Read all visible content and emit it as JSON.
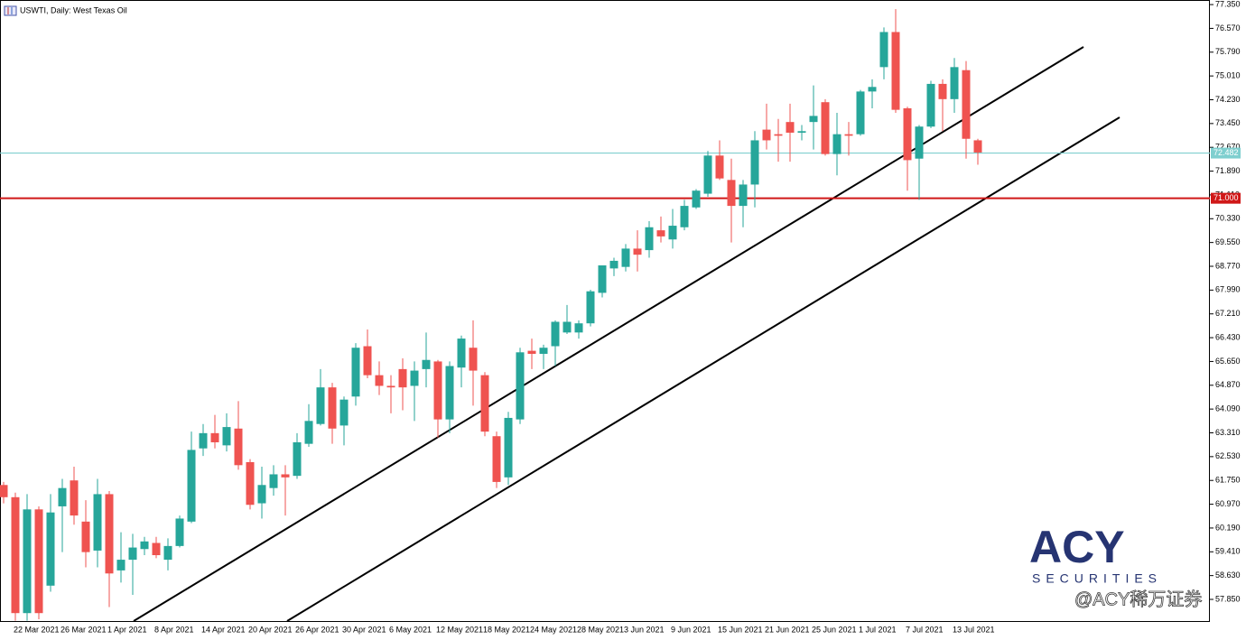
{
  "chart_data": {
    "type": "candlestick",
    "title": "USWTI, Daily: West Texas Oil",
    "categories": [
      null,
      "22 Mar 2021",
      null,
      null,
      null,
      "26 Mar 2021",
      null,
      null,
      null,
      "1 Apr 2021",
      null,
      null,
      null,
      "8 Apr 2021",
      null,
      null,
      null,
      "14 Apr 2021",
      null,
      null,
      null,
      "20 Apr 2021",
      null,
      null,
      null,
      "26 Apr 2021",
      null,
      null,
      null,
      "30 Apr 2021",
      null,
      null,
      null,
      "6 May 2021",
      null,
      null,
      null,
      "12 May 2021",
      null,
      null,
      null,
      "18 May 2021",
      null,
      null,
      null,
      "24 May 2021",
      null,
      null,
      null,
      "28 May 2021",
      null,
      null,
      null,
      "3 Jun 2021",
      null,
      null,
      null,
      "9 Jun 2021",
      null,
      null,
      null,
      "15 Jun 2021",
      null,
      null,
      null,
      "21 Jun 2021",
      null,
      null,
      null,
      "25 Jun 2021",
      null,
      null,
      null,
      "1 Jul 2021",
      null,
      null,
      null,
      "7 Jul 2021",
      null,
      null,
      null,
      "13 Jul 2021",
      null,
      null
    ],
    "open": [
      61.6,
      61.2,
      57.4,
      60.8,
      58.3,
      60.9,
      61.75,
      60.4,
      59.45,
      61.3,
      58.8,
      59.15,
      59.5,
      59.7,
      59.15,
      59.6,
      60.4,
      62.8,
      63.3,
      62.9,
      63.45,
      62.35,
      61.0,
      61.5,
      61.95,
      61.9,
      62.95,
      63.6,
      64.8,
      63.55,
      64.5,
      66.15,
      65.2,
      64.85,
      65.4,
      64.85,
      65.4,
      65.65,
      63.75,
      65.45,
      66.1,
      65.2,
      63.2,
      61.85,
      63.75,
      66.0,
      65.9,
      66.15,
      66.6,
      66.6,
      66.9,
      67.9,
      68.7,
      68.75,
      69.35,
      69.3,
      69.95,
      69.65,
      70.05,
      70.7,
      71.15,
      72.4,
      71.6,
      70.75,
      71.45,
      73.25,
      73.1,
      73.5,
      73.15,
      73.5,
      74.15,
      72.45,
      73.1,
      73.1,
      74.5,
      75.3,
      76.45,
      73.95,
      72.3,
      73.35,
      74.75,
      74.25,
      75.2,
      72.9
    ],
    "high": [
      61.7,
      61.35,
      61.3,
      60.9,
      61.3,
      61.8,
      62.2,
      61.1,
      61.8,
      61.4,
      60.05,
      60.0,
      59.9,
      59.9,
      59.85,
      60.6,
      63.35,
      63.6,
      63.9,
      63.95,
      64.35,
      62.45,
      62.2,
      62.25,
      62.25,
      63.3,
      64.25,
      65.4,
      64.95,
      64.5,
      66.25,
      66.7,
      65.65,
      65.2,
      65.75,
      65.65,
      66.6,
      65.7,
      65.65,
      66.5,
      67.0,
      65.3,
      63.35,
      64.0,
      66.1,
      66.4,
      66.2,
      67.0,
      67.5,
      67.0,
      68.0,
      68.8,
      69.05,
      69.5,
      69.95,
      70.25,
      70.4,
      70.65,
      70.95,
      71.3,
      72.55,
      72.9,
      72.3,
      71.6,
      73.2,
      74.1,
      73.6,
      74.1,
      73.4,
      74.7,
      74.25,
      73.8,
      73.5,
      74.55,
      74.9,
      76.6,
      77.2,
      74.0,
      73.4,
      74.85,
      74.9,
      75.6,
      75.5,
      72.95
    ],
    "low": [
      61.0,
      57.15,
      57.15,
      57.2,
      58.1,
      59.4,
      60.3,
      58.9,
      58.9,
      57.6,
      58.4,
      58.0,
      59.3,
      59.2,
      58.8,
      59.55,
      60.35,
      62.55,
      62.8,
      62.7,
      62.1,
      60.8,
      60.5,
      61.25,
      60.6,
      61.8,
      62.85,
      63.55,
      62.95,
      62.9,
      64.2,
      65.1,
      64.55,
      63.95,
      64.05,
      63.7,
      64.8,
      63.15,
      63.3,
      64.8,
      64.2,
      63.2,
      61.5,
      61.6,
      63.6,
      65.4,
      65.4,
      65.5,
      66.55,
      66.4,
      66.8,
      67.75,
      68.45,
      68.6,
      68.6,
      69.05,
      69.55,
      69.35,
      69.95,
      70.65,
      71.05,
      71.6,
      69.55,
      70.05,
      70.7,
      72.6,
      72.2,
      72.2,
      72.9,
      72.6,
      72.4,
      71.75,
      72.4,
      73.05,
      73.95,
      74.9,
      73.8,
      71.25,
      70.95,
      73.3,
      73.2,
      73.8,
      72.3,
      72.1
    ],
    "close": [
      61.2,
      57.4,
      60.8,
      57.4,
      60.7,
      61.5,
      60.6,
      59.4,
      61.3,
      58.7,
      59.15,
      59.55,
      59.75,
      59.3,
      59.6,
      60.5,
      62.75,
      63.3,
      63.0,
      63.5,
      62.25,
      60.95,
      61.6,
      61.95,
      61.85,
      63.0,
      63.7,
      64.8,
      63.45,
      64.4,
      66.1,
      65.2,
      64.85,
      64.8,
      64.8,
      65.35,
      65.7,
      63.75,
      65.5,
      66.4,
      65.35,
      63.35,
      61.7,
      63.8,
      65.95,
      65.9,
      66.1,
      66.95,
      66.95,
      66.9,
      67.95,
      68.8,
      68.95,
      69.35,
      69.15,
      70.05,
      69.75,
      70.1,
      70.75,
      71.25,
      72.4,
      71.65,
      70.75,
      71.45,
      72.9,
      72.9,
      73.05,
      73.15,
      73.2,
      73.7,
      72.45,
      73.1,
      73.05,
      74.5,
      74.65,
      76.45,
      73.9,
      72.25,
      73.35,
      74.75,
      74.25,
      75.3,
      72.95,
      72.5
    ],
    "up_color": "#26a69a",
    "down_color": "#ef5350",
    "ylim": [
      57.14,
      77.5
    ],
    "yticks": [
      {
        "value": 77.35,
        "label": "77.350"
      },
      {
        "value": 76.57,
        "label": "76.570"
      },
      {
        "value": 75.79,
        "label": "75.790"
      },
      {
        "value": 75.01,
        "label": "75.010"
      },
      {
        "value": 74.23,
        "label": "74.230"
      },
      {
        "value": 73.45,
        "label": "73.450"
      },
      {
        "value": 72.67,
        "label": "72.670"
      },
      {
        "value": 71.89,
        "label": "71.890"
      },
      {
        "value": 71.11,
        "label": "71.110"
      },
      {
        "value": 70.33,
        "label": "70.330"
      },
      {
        "value": 69.55,
        "label": "69.550"
      },
      {
        "value": 68.77,
        "label": "68.770"
      },
      {
        "value": 67.99,
        "label": "67.990"
      },
      {
        "value": 67.21,
        "label": "67.210"
      },
      {
        "value": 66.43,
        "label": "66.430"
      },
      {
        "value": 65.65,
        "label": "65.650"
      },
      {
        "value": 64.87,
        "label": "64.870"
      },
      {
        "value": 64.09,
        "label": "64.090"
      },
      {
        "value": 63.31,
        "label": "63.310"
      },
      {
        "value": 62.53,
        "label": "62.530"
      },
      {
        "value": 61.75,
        "label": "61.750"
      },
      {
        "value": 60.97,
        "label": "60.970"
      },
      {
        "value": 60.19,
        "label": "60.190"
      },
      {
        "value": 59.41,
        "label": "59.410"
      },
      {
        "value": 58.63,
        "label": "58.630"
      },
      {
        "value": 57.85,
        "label": "57.850"
      }
    ],
    "hlines": [
      {
        "value": 72.482,
        "label": "72.482",
        "color": "#7fcfcf"
      },
      {
        "value": 71.0,
        "label": "71.000",
        "color": "#d01818"
      }
    ]
  },
  "watermark": {
    "brand": "ACY",
    "tagline": "SECURITIES",
    "handle": "@ACY稀万证券"
  }
}
